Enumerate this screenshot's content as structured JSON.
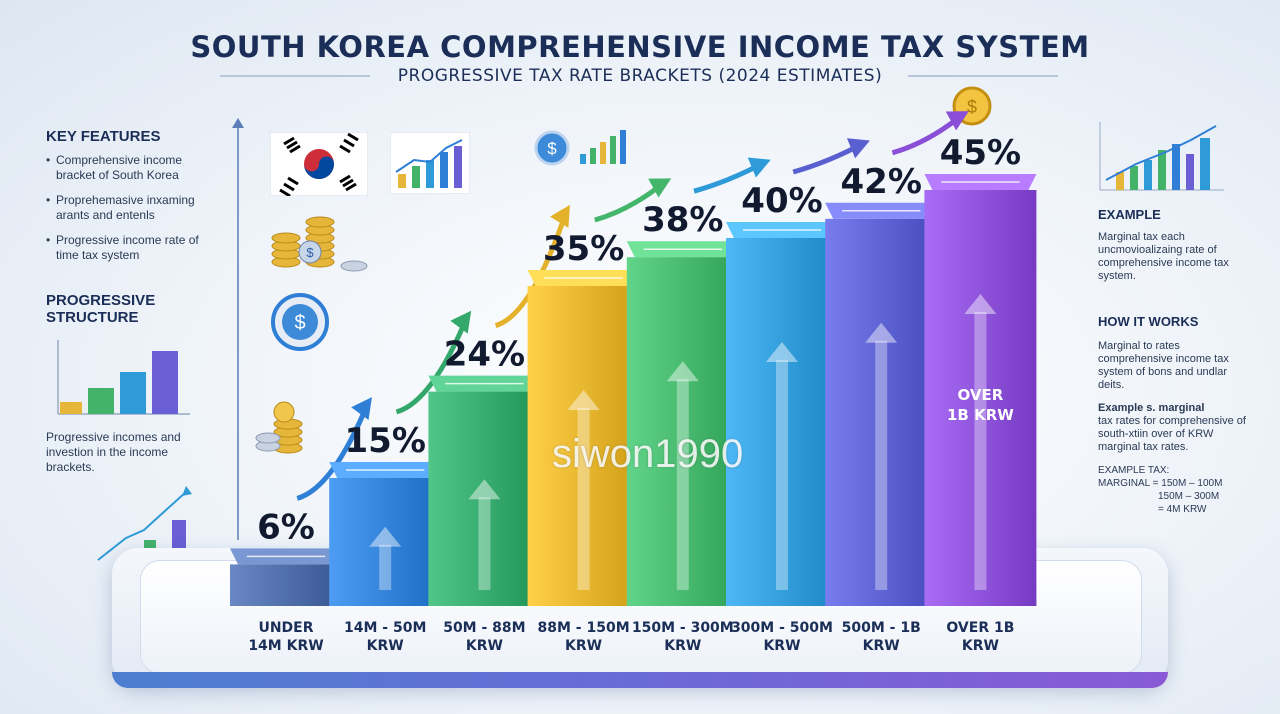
{
  "header": {
    "title": "SOUTH KOREA COMPREHENSIVE INCOME TAX SYSTEM",
    "subtitle": "PROGRESSIVE TAX RATE BRACKETS (2024 ESTIMATES)"
  },
  "left_panel": {
    "key_features_title": "KEY FEATURES",
    "key_features": [
      "Comprehensive income bracket of South Korea",
      "Proprehemasive inxaming arants and entenls",
      "Progressive income rate of time tax system"
    ],
    "structure_title": "PROGRESSIVE STRUCTURE",
    "structure_text": "Progressive incomes and investion in the income brackets."
  },
  "right_panel": {
    "example_title": "EXAMPLE",
    "example_text": "Marginal tax each uncmovioalizaing rate of  comprehensive income tax system.",
    "how_title": "HOW IT WORKS",
    "how_text": "Marginal to rates comprehensive income tax system of bons and undlar deits.",
    "example2_bold": "Example s. marginal",
    "example2_text": "tax rates for comprehensive of south-xtiin over of KRW marginal tax rates.",
    "example_tax_label": "EXAMPLE TAX:",
    "example_tax_lines": [
      "MARGINAL = 150M – 100M",
      "150M – 300M",
      "= 4M KRW"
    ]
  },
  "watermark": "siwon1990",
  "colors": {
    "title": "#1b2e57",
    "bars": [
      "#4b6aa6",
      "#2f7fd6",
      "#33a86a",
      "#e3b22a",
      "#43b66b",
      "#2f9ad8",
      "#5a5fd0",
      "#8a4fd6"
    ]
  },
  "chart_data": {
    "type": "bar",
    "categories": [
      "UNDER 14M KRW",
      "14M - 50M KRW",
      "50M - 88M KRW",
      "88M - 150M KRW",
      "150M - 300M KRW",
      "300M - 500M KRW",
      "500M - 1B KRW",
      "OVER 1B KRW"
    ],
    "category_lines": [
      [
        "UNDER",
        "14M KRW"
      ],
      [
        "14M - 50M",
        "KRW"
      ],
      [
        "50M - 88M",
        "KRW"
      ],
      [
        "88M - 150M",
        "KRW"
      ],
      [
        "150M - 300M",
        "KRW"
      ],
      [
        "300M - 500M",
        "KRW"
      ],
      [
        "500M - 1B",
        "KRW"
      ],
      [
        "OVER 1B",
        "KRW"
      ]
    ],
    "values": [
      6,
      15,
      24,
      35,
      38,
      40,
      42,
      45
    ],
    "value_labels": [
      "6%",
      "15%",
      "24%",
      "35%",
      "38%",
      "40%",
      "42%",
      "45%"
    ],
    "in_bar_label": [
      "OVER",
      "1B KRW"
    ],
    "unit": "%",
    "grid": false,
    "legend": "none"
  }
}
